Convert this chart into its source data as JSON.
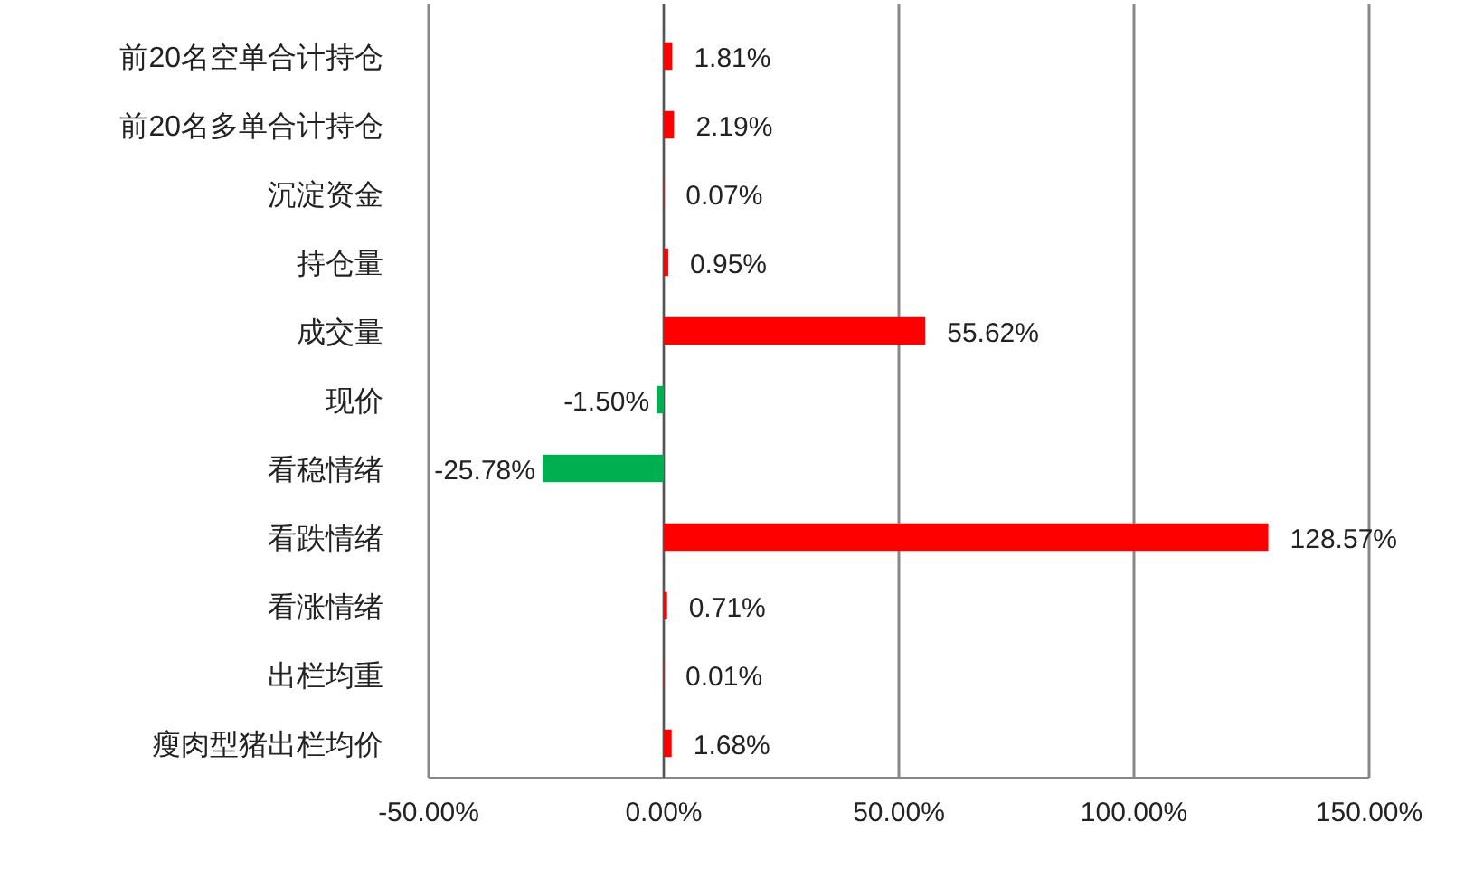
{
  "chart_data": {
    "type": "bar",
    "orientation": "horizontal",
    "categories": [
      "前20名空单合计持仓",
      "前20名多单合计持仓",
      "沉淀资金",
      "持仓量",
      "成交量",
      "现价",
      "看稳情绪",
      "看跌情绪",
      "看涨情绪",
      "出栏均重",
      "瘦肉型猪出栏均价"
    ],
    "values": [
      1.81,
      2.19,
      0.07,
      0.95,
      55.62,
      -1.5,
      -25.78,
      128.57,
      0.71,
      0.01,
      1.68
    ],
    "colors": [
      "#ff0000",
      "#ff0000",
      "#ff0000",
      "#ff0000",
      "#ff0000",
      "#00b050",
      "#00b050",
      "#ff0000",
      "#ff0000",
      "#ff0000",
      "#ff0000"
    ],
    "value_labels": [
      "1.81%",
      "2.19%",
      "0.07%",
      "0.95%",
      "55.62%",
      "-1.50%",
      "-25.78%",
      "128.57%",
      "0.71%",
      "0.01%",
      "1.68%"
    ],
    "xlim": [
      -50,
      150
    ],
    "xticks": [
      {
        "value": -50,
        "label": "-50.00%"
      },
      {
        "value": 0,
        "label": "0.00%"
      },
      {
        "value": 50,
        "label": "50.00%"
      },
      {
        "value": 100,
        "label": "100.00%"
      },
      {
        "value": 150,
        "label": "150.00%"
      }
    ],
    "grid": "x"
  }
}
